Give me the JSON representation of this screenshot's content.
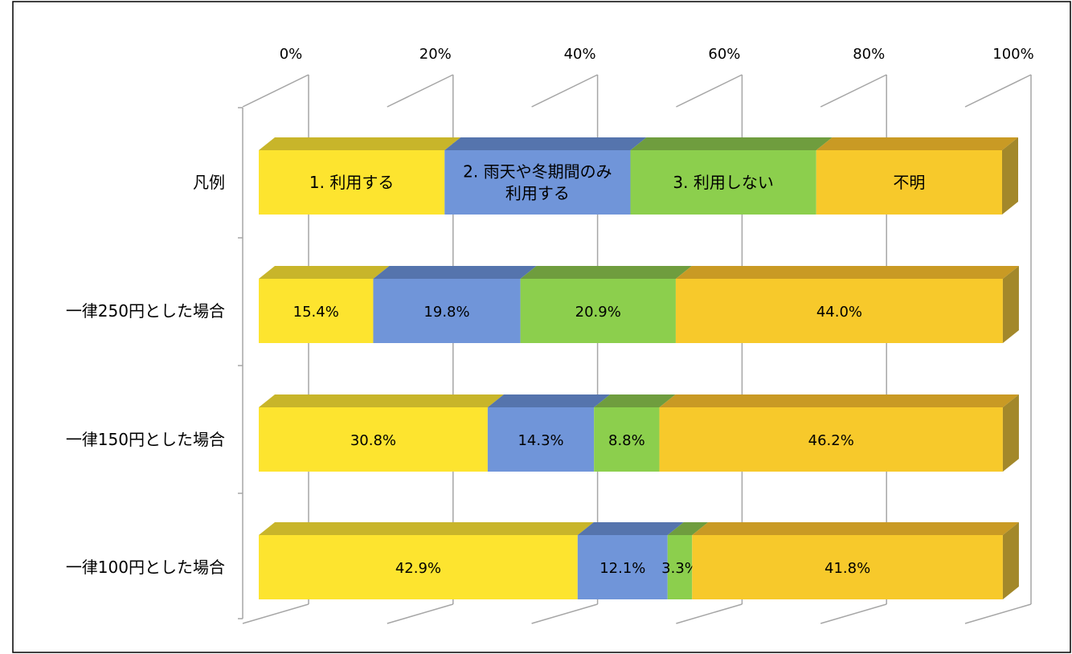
{
  "chart_data": {
    "type": "bar",
    "orientation": "horizontal",
    "stacked": "percent",
    "style": "3d",
    "xlim": [
      0,
      100
    ],
    "x_ticks": [
      "0%",
      "20%",
      "40%",
      "60%",
      "80%",
      "100%"
    ],
    "grid": true,
    "legend_row": {
      "category": "凡例",
      "entries": [
        "1. 利用する",
        "2. 雨天や冬期間のみ利用する",
        "3. 利用しない",
        "不明"
      ],
      "entry_lines": [
        [
          "1. 利用する"
        ],
        [
          "2. 雨天や冬期間のみ",
          "利用する"
        ],
        [
          "3. 利用しない"
        ],
        [
          "不明"
        ]
      ],
      "values": [
        25,
        25,
        25,
        25
      ]
    },
    "categories": [
      "一律250円とした場合",
      "一律150円とした場合",
      "一律100円とした場合"
    ],
    "series": [
      {
        "name": "1. 利用する",
        "color": "#fde42f",
        "values": [
          15.4,
          30.8,
          42.9
        ],
        "labels": [
          "15.4%",
          "30.8%",
          "42.9%"
        ]
      },
      {
        "name": "2. 雨天や冬期間のみ利用する",
        "color": "#7095d9",
        "values": [
          19.8,
          14.3,
          12.1
        ],
        "labels": [
          "19.8%",
          "14.3%",
          "12.1%"
        ]
      },
      {
        "name": "3. 利用しない",
        "color": "#8ccf4d",
        "values": [
          20.9,
          8.8,
          3.3
        ],
        "labels": [
          "20.9%",
          "8.8%",
          "3.3%"
        ]
      },
      {
        "name": "不明",
        "color": "#f7c92b",
        "values": [
          44.0,
          46.2,
          41.8
        ],
        "labels": [
          "44.0%",
          "46.2%",
          "41.8%"
        ]
      }
    ],
    "colors": {
      "top_shades": [
        "#c8b52a",
        "#5574ad",
        "#6f9d3e",
        "#c99a24"
      ],
      "end_cap": "#a3882a",
      "grid": "#a6a6a6",
      "axis": "#a6a6a6"
    }
  }
}
